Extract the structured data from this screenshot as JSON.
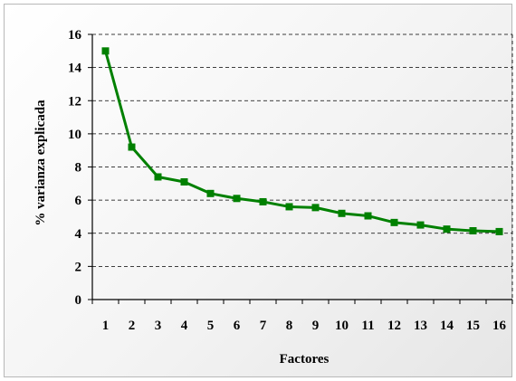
{
  "chart_data": {
    "type": "line",
    "title": "",
    "xlabel": "Factores",
    "ylabel": "% varianza explicada",
    "ylim": [
      0,
      16
    ],
    "yticks": [
      0,
      2,
      4,
      6,
      8,
      10,
      12,
      14,
      16
    ],
    "x": [
      1,
      2,
      3,
      4,
      5,
      6,
      7,
      8,
      9,
      10,
      11,
      12,
      13,
      14,
      15,
      16
    ],
    "series": [
      {
        "values": [
          15.0,
          9.2,
          7.4,
          7.1,
          6.4,
          6.1,
          5.9,
          5.6,
          5.55,
          5.2,
          5.05,
          4.65,
          4.5,
          4.25,
          4.15,
          4.1
        ],
        "color": "#008000",
        "marker": "square"
      }
    ],
    "grid": true,
    "legend": "none"
  }
}
